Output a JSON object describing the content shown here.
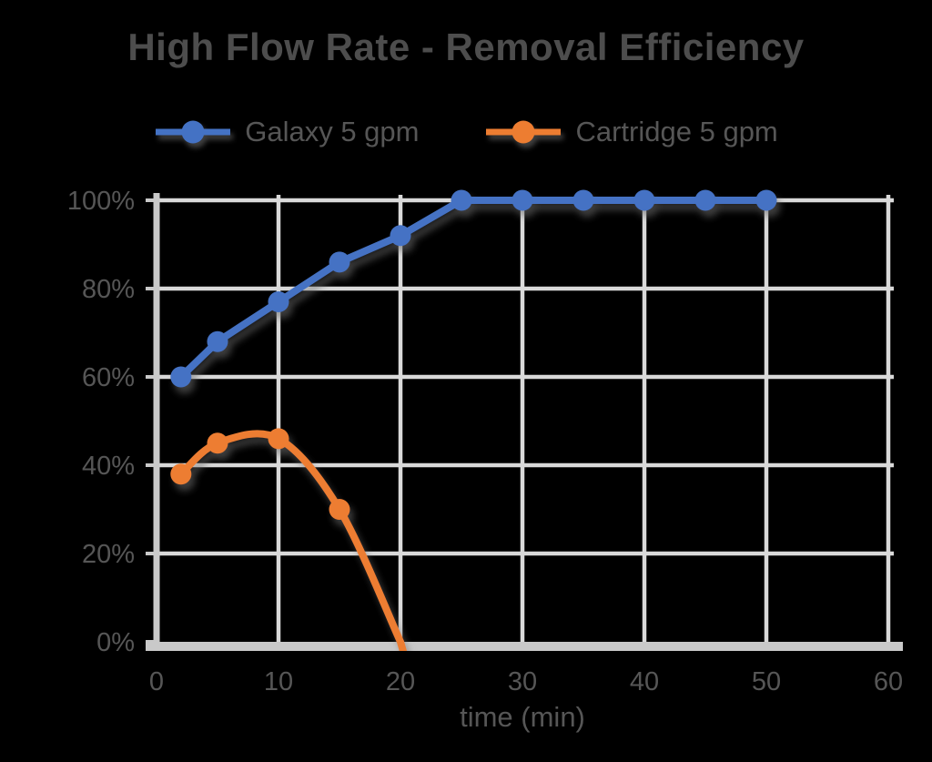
{
  "title": "High Flow Rate - Removal Efficiency",
  "colors": {
    "series_blue": "#4472C4",
    "series_orange": "#ED7D31",
    "gridline": "#D9D9D9",
    "axis_line": "#C9C9C9",
    "text": "#565656",
    "background": "#000000"
  },
  "legend": {
    "items": [
      {
        "label": "Galaxy 5 gpm",
        "color": "#4472C4"
      },
      {
        "label": "Cartridge 5 gpm",
        "color": "#ED7D31"
      }
    ]
  },
  "axes": {
    "x_label": "time (min)",
    "x_tick_labels": [
      "0",
      "10",
      "20",
      "30",
      "40",
      "50",
      "60"
    ],
    "y_tick_labels": [
      "0%",
      "20%",
      "40%",
      "60%",
      "80%",
      "100%"
    ]
  },
  "chart_data": {
    "type": "line",
    "title": "High Flow Rate - Removal Efficiency",
    "xlabel": "time (min)",
    "ylabel": "",
    "xlim": [
      0,
      60
    ],
    "ylim": [
      0,
      100
    ],
    "x_ticks": [
      0,
      10,
      20,
      30,
      40,
      50,
      60
    ],
    "y_ticks": [
      0,
      20,
      40,
      60,
      80,
      100
    ],
    "grid": true,
    "legend_position": "top-center",
    "series": [
      {
        "name": "Galaxy 5 gpm",
        "color": "#4472C4",
        "marker": "circle",
        "smooth": false,
        "end_clipped": false,
        "x": [
          2,
          5,
          10,
          15,
          20,
          25,
          30,
          35,
          40,
          45,
          50
        ],
        "values": [
          60,
          68,
          77,
          86,
          92,
          100,
          100,
          100,
          100,
          100,
          100
        ]
      },
      {
        "name": "Cartridge 5 gpm",
        "color": "#ED7D31",
        "marker": "circle",
        "smooth": true,
        "end_clipped": true,
        "x": [
          2,
          5,
          10,
          15,
          20
        ],
        "values": [
          38,
          45,
          46,
          30,
          0
        ]
      }
    ]
  }
}
